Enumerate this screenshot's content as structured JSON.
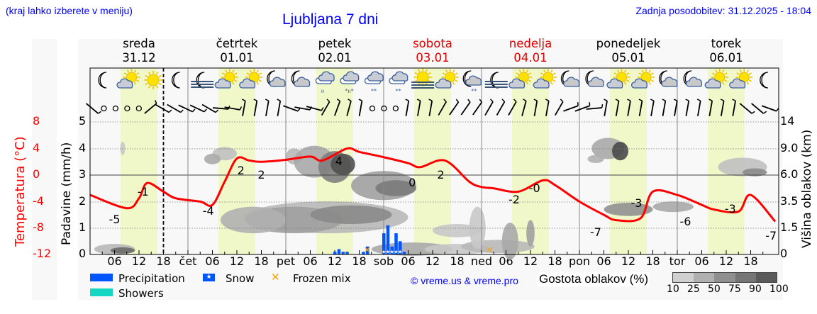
{
  "header": {
    "hint": "(kraj lahko izberete v meniju)",
    "title": "Ljubljana 7 dni",
    "updated": "Zadnja posodobitev: 31.12.2025 - 18:04"
  },
  "days": [
    {
      "name": "sreda",
      "date": "31.12",
      "weekend": false
    },
    {
      "name": "četrtek",
      "date": "01.01",
      "weekend": false
    },
    {
      "name": "petek",
      "date": "02.01",
      "weekend": false
    },
    {
      "name": "sobota",
      "date": "03.01",
      "weekend": true
    },
    {
      "name": "nedelja",
      "date": "04.01",
      "weekend": true
    },
    {
      "name": "ponedeljek",
      "date": "05.01",
      "weekend": false
    },
    {
      "name": "torek",
      "date": "06.01",
      "weekend": false
    }
  ],
  "axes": {
    "temp_label": "Temperatura (°C)",
    "temp_ticks": [
      "8",
      "4",
      "0",
      "-4",
      "-8",
      "-12"
    ],
    "precip_label": "Padavine (mm/h)",
    "precip_ticks": [
      "5",
      "4",
      "3",
      "2",
      "1",
      "0"
    ],
    "cloud_label": "Višina oblakov (km)",
    "cloud_ticks": [
      "14",
      "9.0",
      "6.0",
      "3.5",
      "1.5",
      "0"
    ],
    "x_ticks": [
      "06",
      "12",
      "18",
      "čet",
      "06",
      "12",
      "18",
      "pet",
      "06",
      "12",
      "18",
      "sob",
      "06",
      "12",
      "18",
      "ned",
      "06",
      "12",
      "18",
      "pon",
      "06",
      "12",
      "18",
      "tor",
      "06",
      "12",
      "18"
    ]
  },
  "weather_icons": [
    "moon",
    "sun-cloud",
    "sun",
    "moon",
    "moon-fog",
    "sun-cloud",
    "sun-cloud",
    "moon-cloud",
    "moon-cloud",
    "cloud-rain",
    "cloud-sleet",
    "cloud-snow",
    "cloud-snow",
    "sun-fog",
    "sun-cloud",
    "moon-cloud-snow",
    "moon-fog",
    "sun-cloud",
    "sun-cloud",
    "moon-cloud",
    "moon-cloud",
    "sun-cloud",
    "sun-cloud",
    "moon-cloud",
    "moon-cloud",
    "sun-cloud",
    "sun-cloud",
    "moon"
  ],
  "legend": {
    "precipitation": "Precipitation",
    "showers": "Showers",
    "snow": "Snow",
    "frozen_mix": "Frozen mix",
    "copyright": "© vreme.us & vreme.pro",
    "cloud_density": "Gostota oblakov (%)",
    "density_ticks": [
      "10",
      "25",
      "50",
      "75",
      "90",
      "100"
    ]
  },
  "colors": {
    "temperature": "#ff0000",
    "precipitation": "#0055ff",
    "showers": "#14d7c3",
    "frozen_mix": "#ffa500",
    "daylight": "#f0f7c8",
    "weekend": "#e00000",
    "link": "#0000ff"
  },
  "chart_data": {
    "type": "line",
    "title": "Ljubljana 7 dni",
    "xlabel": "",
    "ylabel": "Temperatura (°C) / Padavine (mm/h)",
    "y2label": "Višina oblakov (km)",
    "ylim_temp": [
      -12,
      8
    ],
    "ylim_precip": [
      0,
      5
    ],
    "now_marker": "sreda 31.12 18:00",
    "series": [
      {
        "name": "Temperatura",
        "unit": "°C",
        "x_hours": [
          0,
          9,
          12,
          14,
          18,
          21,
          27,
          30,
          33,
          36,
          39,
          42,
          48,
          54,
          57,
          63,
          66,
          72,
          78,
          81,
          87,
          93,
          96,
          99,
          105,
          111,
          114,
          120,
          126,
          129,
          135,
          138,
          144,
          150,
          153,
          159,
          162,
          168
        ],
        "values": [
          -3.0,
          -5.0,
          -3.5,
          -1.2,
          -2.5,
          -3.5,
          -4.0,
          -4.5,
          -1.0,
          2.5,
          2.2,
          2.0,
          2.3,
          2.8,
          2.2,
          4.0,
          3.5,
          2.7,
          1.8,
          1.2,
          2.2,
          -1.0,
          -1.8,
          -2.0,
          -2.5,
          -0.8,
          -1.5,
          -4.0,
          -6.0,
          -6.8,
          -6.5,
          -2.5,
          -3.0,
          -4.5,
          -5.2,
          -5.5,
          -3.0,
          -7.0
        ]
      },
      {
        "name": "Temperature labels",
        "labels": [
          {
            "hour": 6,
            "value": -5
          },
          {
            "hour": 13,
            "value": -1
          },
          {
            "hour": 29,
            "value": -4
          },
          {
            "hour": 37,
            "value": 2
          },
          {
            "hour": 42,
            "value": 2
          },
          {
            "hour": 61,
            "value": 4
          },
          {
            "hour": 79,
            "value": 0
          },
          {
            "hour": 86,
            "value": 2
          },
          {
            "hour": 104,
            "value": -2
          },
          {
            "hour": 109,
            "value": 0
          },
          {
            "hour": 124,
            "value": -7
          },
          {
            "hour": 134,
            "value": -3
          },
          {
            "hour": 146,
            "value": -6
          },
          {
            "hour": 157,
            "value": -3
          },
          {
            "hour": 167,
            "value": -7
          }
        ]
      },
      {
        "name": "Precipitation",
        "unit": "mm/h",
        "x_hours": [
          60,
          61,
          62,
          63,
          67,
          68,
          72,
          73,
          74,
          75,
          76,
          77
        ],
        "values": [
          0.1,
          0.2,
          0.1,
          0.1,
          0.1,
          0.3,
          0.8,
          1.1,
          0.3,
          0.8,
          0.5,
          0.1
        ]
      },
      {
        "name": "Snow",
        "x_hours": [
          72,
          73,
          74,
          75,
          76
        ]
      },
      {
        "name": "Frozen mix",
        "x_hours": [
          68,
          98
        ]
      }
    ]
  }
}
